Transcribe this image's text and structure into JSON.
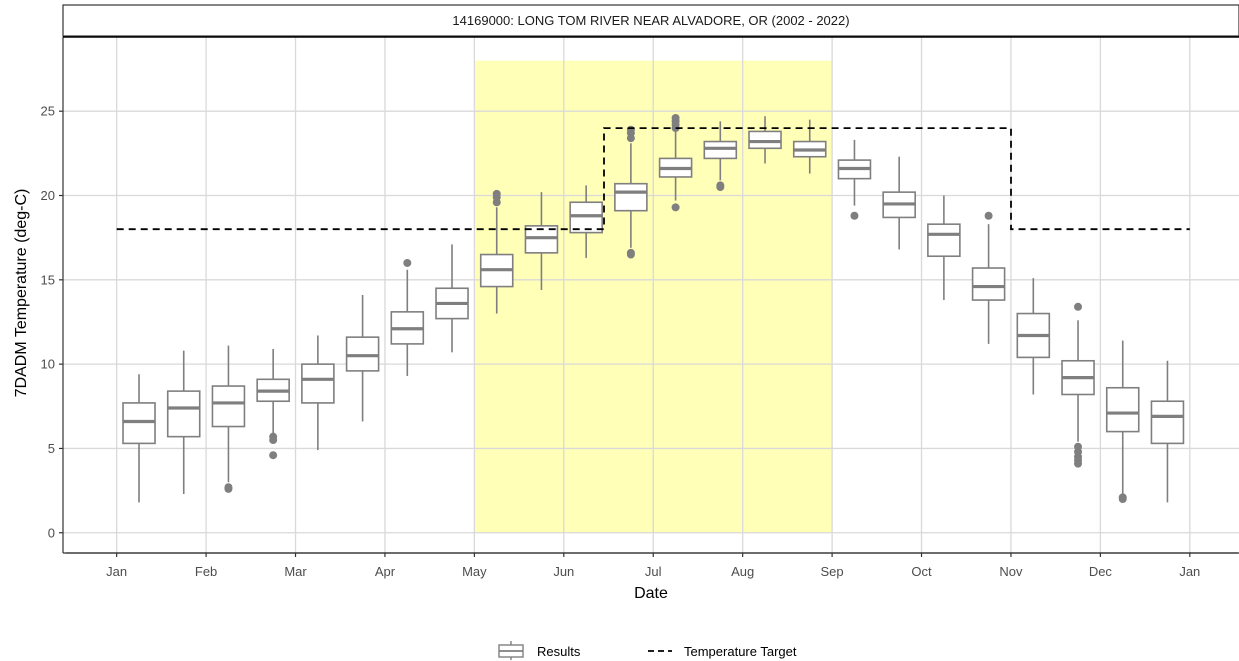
{
  "chart_data": {
    "type": "boxplot",
    "title": "14169000: LONG TOM RIVER NEAR ALVADORE, OR (2002 - 2022)",
    "xlabel": "Date",
    "ylabel": "7DADM Temperature (deg-C)",
    "ylim": [
      -1.2,
      29.4
    ],
    "yticks": [
      0,
      5,
      10,
      15,
      20,
      25
    ],
    "xlim": [
      -0.6,
      12.55
    ],
    "xticks": [
      {
        "label": "Jan",
        "x": 0
      },
      {
        "label": "Feb",
        "x": 1
      },
      {
        "label": "Mar",
        "x": 2
      },
      {
        "label": "Apr",
        "x": 3
      },
      {
        "label": "May",
        "x": 4
      },
      {
        "label": "Jun",
        "x": 5
      },
      {
        "label": "Jul",
        "x": 6
      },
      {
        "label": "Aug",
        "x": 7
      },
      {
        "label": "Sep",
        "x": 8
      },
      {
        "label": "Oct",
        "x": 9
      },
      {
        "label": "Nov",
        "x": 10
      },
      {
        "label": "Dec",
        "x": 11
      },
      {
        "label": "Jan",
        "x": 12
      }
    ],
    "grid": true,
    "legend_position": "bottom",
    "colors": {
      "box": "#7f7f7f",
      "highlight": "#ffffb3",
      "target": "#000000",
      "grid": "#d9d9d9",
      "panel_border": "#333333"
    },
    "highlight_period": {
      "x_start": 4,
      "x_end": 8,
      "y_top": 28
    },
    "series": [
      {
        "name": "Results",
        "type": "box",
        "boxes": [
          {
            "x": 0.25,
            "min": 1.8,
            "q1": 5.3,
            "median": 6.6,
            "q3": 7.7,
            "max": 9.4,
            "outliers": []
          },
          {
            "x": 0.75,
            "min": 2.3,
            "q1": 5.7,
            "median": 7.4,
            "q3": 8.4,
            "max": 10.8,
            "outliers": []
          },
          {
            "x": 1.25,
            "min": 3.0,
            "q1": 6.3,
            "median": 7.7,
            "q3": 8.7,
            "max": 11.1,
            "outliers": [
              2.7,
              2.6
            ]
          },
          {
            "x": 1.75,
            "min": 5.9,
            "q1": 7.8,
            "median": 8.4,
            "q3": 9.1,
            "max": 10.9,
            "outliers": [
              5.7,
              5.5,
              4.6
            ]
          },
          {
            "x": 2.25,
            "min": 4.9,
            "q1": 7.7,
            "median": 9.1,
            "q3": 10.0,
            "max": 11.7,
            "outliers": []
          },
          {
            "x": 2.75,
            "min": 6.6,
            "q1": 9.6,
            "median": 10.5,
            "q3": 11.6,
            "max": 14.1,
            "outliers": []
          },
          {
            "x": 3.25,
            "min": 9.3,
            "q1": 11.2,
            "median": 12.1,
            "q3": 13.1,
            "max": 15.6,
            "outliers": [
              16.0
            ]
          },
          {
            "x": 3.75,
            "min": 10.7,
            "q1": 12.7,
            "median": 13.6,
            "q3": 14.5,
            "max": 17.1,
            "outliers": []
          },
          {
            "x": 4.25,
            "min": 13.0,
            "q1": 14.6,
            "median": 15.6,
            "q3": 16.5,
            "max": 19.3,
            "outliers": [
              19.6,
              19.9,
              20.1
            ]
          },
          {
            "x": 4.75,
            "min": 14.4,
            "q1": 16.6,
            "median": 17.5,
            "q3": 18.2,
            "max": 20.2,
            "outliers": []
          },
          {
            "x": 5.25,
            "min": 16.3,
            "q1": 17.8,
            "median": 18.8,
            "q3": 19.6,
            "max": 20.6,
            "outliers": []
          },
          {
            "x": 5.75,
            "min": 16.9,
            "q1": 19.1,
            "median": 20.2,
            "q3": 20.7,
            "max": 23.1,
            "outliers": [
              16.5,
              16.6,
              23.4,
              23.7,
              23.9
            ]
          },
          {
            "x": 6.25,
            "min": 19.7,
            "q1": 21.1,
            "median": 21.6,
            "q3": 22.2,
            "max": 23.9,
            "outliers": [
              19.3,
              24.0,
              24.2,
              24.4,
              24.6
            ]
          },
          {
            "x": 6.75,
            "min": 20.9,
            "q1": 22.2,
            "median": 22.8,
            "q3": 23.2,
            "max": 24.4,
            "outliers": [
              20.5,
              20.6
            ]
          },
          {
            "x": 7.25,
            "min": 21.9,
            "q1": 22.8,
            "median": 23.2,
            "q3": 23.8,
            "max": 24.7,
            "outliers": []
          },
          {
            "x": 7.75,
            "min": 21.3,
            "q1": 22.3,
            "median": 22.7,
            "q3": 23.2,
            "max": 24.5,
            "outliers": []
          },
          {
            "x": 8.25,
            "min": 19.4,
            "q1": 21.0,
            "median": 21.6,
            "q3": 22.1,
            "max": 23.3,
            "outliers": [
              18.8
            ]
          },
          {
            "x": 8.75,
            "min": 16.8,
            "q1": 18.7,
            "median": 19.5,
            "q3": 20.2,
            "max": 22.3,
            "outliers": []
          },
          {
            "x": 9.25,
            "min": 13.8,
            "q1": 16.4,
            "median": 17.7,
            "q3": 18.3,
            "max": 20.0,
            "outliers": []
          },
          {
            "x": 9.75,
            "min": 11.2,
            "q1": 13.8,
            "median": 14.6,
            "q3": 15.7,
            "max": 18.3,
            "outliers": [
              18.8
            ]
          },
          {
            "x": 10.25,
            "min": 8.2,
            "q1": 10.4,
            "median": 11.7,
            "q3": 13.0,
            "max": 15.1,
            "outliers": []
          },
          {
            "x": 10.75,
            "min": 5.4,
            "q1": 8.2,
            "median": 9.2,
            "q3": 10.2,
            "max": 12.6,
            "outliers": [
              5.1,
              4.8,
              4.5,
              4.3,
              4.1,
              13.4
            ]
          },
          {
            "x": 11.25,
            "min": 2.3,
            "q1": 6.0,
            "median": 7.1,
            "q3": 8.6,
            "max": 11.4,
            "outliers": [
              2.1,
              2.0
            ]
          },
          {
            "x": 11.75,
            "min": 1.8,
            "q1": 5.3,
            "median": 6.9,
            "q3": 7.8,
            "max": 10.2,
            "outliers": []
          }
        ]
      },
      {
        "name": "Temperature Target",
        "type": "step",
        "style": "dashed",
        "points": [
          {
            "x": 0,
            "y": 18
          },
          {
            "x": 5.45,
            "y": 18
          },
          {
            "x": 5.45,
            "y": 24
          },
          {
            "x": 10,
            "y": 24
          },
          {
            "x": 10,
            "y": 18
          },
          {
            "x": 12,
            "y": 18
          }
        ]
      }
    ]
  }
}
